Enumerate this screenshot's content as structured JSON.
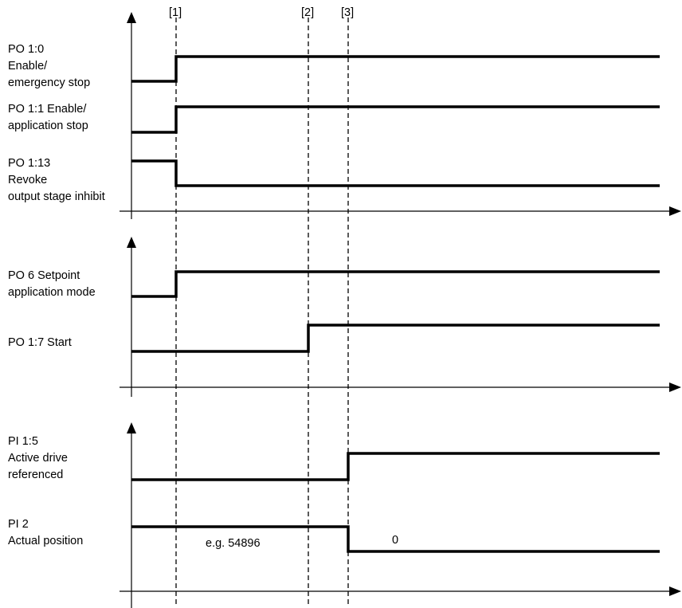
{
  "markers": [
    "[1]",
    "[2]",
    "[3]"
  ],
  "panels": [
    {
      "signals": [
        {
          "label": "PO 1:0\nEnable/\nemergency stop",
          "initial": 0,
          "transitions": [
            "[1]"
          ]
        },
        {
          "label": "PO 1:1 Enable/\napplication stop",
          "initial": 0,
          "transitions": [
            "[1]"
          ]
        },
        {
          "label": "PO 1:13\nRevoke\noutput stage inhibit",
          "initial": 1,
          "transitions": [
            "[1]"
          ]
        }
      ]
    },
    {
      "signals": [
        {
          "label": "PO 6 Setpoint\napplication mode",
          "initial": 0,
          "transitions": [
            "[1]"
          ]
        },
        {
          "label": "PO 1:7 Start",
          "initial": 0,
          "transitions": [
            "[2]"
          ]
        }
      ]
    },
    {
      "signals": [
        {
          "label": "PI 1:5\nActive drive\nreferenced",
          "initial": 0,
          "transitions": [
            "[3]"
          ]
        },
        {
          "label": "PI 2\nActual position",
          "initial": 1,
          "transitions": [
            "[3]"
          ]
        }
      ]
    }
  ],
  "annotations": {
    "value_before": "e.g. 54896",
    "value_after": "0"
  },
  "colors": {
    "line": "#000000"
  }
}
